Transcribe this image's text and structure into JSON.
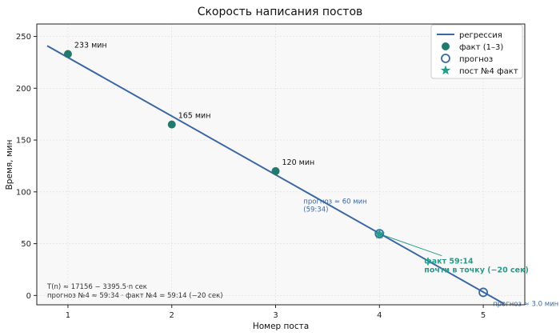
{
  "chart_data": {
    "type": "scatter",
    "title": "Скорость написания постов",
    "xlabel": "Номер поста",
    "ylabel": "Время, мин",
    "xlim": [
      0.7,
      5.4
    ],
    "ylim": [
      -9,
      262
    ],
    "xticks": [
      1,
      2,
      3,
      4,
      5
    ],
    "yticks": [
      0,
      50,
      100,
      150,
      200,
      250
    ],
    "grid": true,
    "legend_position": "top-right",
    "colors": {
      "regression": "#3b67a3",
      "fact": "#217a6e",
      "forecast": "#3b67a3",
      "post4": "#249d8a"
    },
    "series": [
      {
        "name": "регрессия",
        "kind": "line",
        "x": [
          0.8,
          5.2
        ],
        "y": [
          241,
          -8
        ]
      },
      {
        "name": "факт (1–3)",
        "kind": "points",
        "x": [
          1,
          2,
          3
        ],
        "y": [
          233,
          165,
          120
        ],
        "labels": [
          "233 мин",
          "165 мин",
          "120 мин"
        ]
      },
      {
        "name": "прогноз",
        "kind": "hollow-points",
        "x": [
          4,
          5
        ],
        "y": [
          59.6,
          3.0
        ]
      },
      {
        "name": "пост №4 факт",
        "kind": "star",
        "x": [
          4
        ],
        "y": [
          59.2
        ]
      }
    ],
    "annotations": {
      "forecast4": [
        "прогноз ≈ 60 мин",
        "(59:34)"
      ],
      "forecast5": "прогноз ≈ 3.0 мин",
      "fact4": [
        "факт 59:14",
        "почти в точку (−20 сек)"
      ],
      "formula": [
        "T(n) ≈ 17156 − 3395.5·n сек",
        "прогноз №4 ≈ 59:34  ·  факт №4 = 59:14 (−20 сек)"
      ]
    }
  }
}
